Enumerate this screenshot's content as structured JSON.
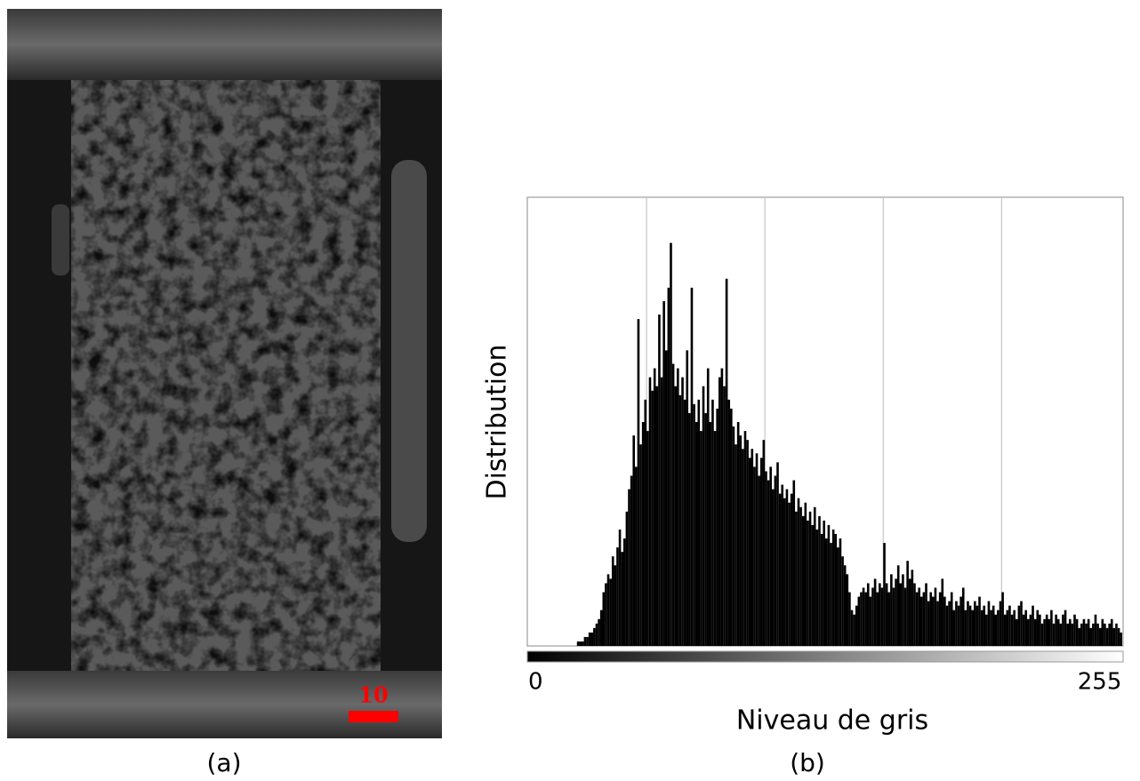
{
  "image": {
    "scale_bar_label": "10",
    "caption": "(a)"
  },
  "chart_data": {
    "type": "histogram",
    "caption": "(b)",
    "ylabel": "Distribution",
    "xlabel": "Niveau de gris",
    "color": "#000000",
    "bins": [
      0,
      1,
      2,
      3,
      4,
      5,
      6,
      7,
      8,
      9,
      10,
      11,
      12,
      13,
      14,
      15,
      16,
      17,
      18,
      19,
      20,
      21,
      22,
      23,
      24,
      25,
      26,
      27,
      28,
      29,
      30,
      31,
      32,
      33,
      34,
      35,
      36,
      37,
      38,
      39,
      40,
      41,
      42,
      43,
      44,
      45,
      46,
      47,
      48,
      49,
      50,
      51,
      52,
      53,
      54,
      55,
      56,
      57,
      58,
      59,
      60,
      61,
      62,
      63,
      64,
      65,
      66,
      67,
      68,
      69,
      70,
      71,
      72,
      73,
      74,
      75,
      76,
      77,
      78,
      79,
      80,
      81,
      82,
      83,
      84,
      85,
      86,
      87,
      88,
      89,
      90,
      91,
      92,
      93,
      94,
      95,
      96,
      97,
      98,
      99,
      100,
      101,
      102,
      103,
      104,
      105,
      106,
      107,
      108,
      109,
      110,
      111,
      112,
      113,
      114,
      115,
      116,
      117,
      118,
      119,
      120,
      121,
      122,
      123,
      124,
      125,
      126,
      127,
      128,
      129,
      130,
      131,
      132,
      133,
      134,
      135,
      136,
      137,
      138,
      139,
      140,
      141,
      142,
      143,
      144,
      145,
      146,
      147,
      148,
      149,
      150,
      151,
      152,
      153,
      154,
      155,
      156,
      157,
      158,
      159,
      160,
      161,
      162,
      163,
      164,
      165,
      166,
      167,
      168,
      169,
      170,
      171,
      172,
      173,
      174,
      175,
      176,
      177,
      178,
      179,
      180,
      181,
      182,
      183,
      184,
      185,
      186,
      187,
      188,
      189,
      190,
      191,
      192,
      193,
      194,
      195,
      196,
      197,
      198,
      199,
      200,
      201,
      202,
      203,
      204,
      205,
      206,
      207,
      208,
      209,
      210,
      211,
      212,
      213,
      214,
      215,
      216,
      217,
      218,
      219,
      220,
      221,
      222,
      223,
      224,
      225,
      226,
      227,
      228,
      229,
      230,
      231,
      232,
      233,
      234,
      235,
      236,
      237,
      238,
      239,
      240,
      241,
      242,
      243,
      244,
      245,
      246,
      247,
      248,
      249,
      250,
      251,
      252,
      253,
      254,
      255,
      256
    ],
    "values": [
      0,
      0,
      0,
      0,
      0,
      0,
      0,
      0,
      0,
      0,
      0,
      0,
      0,
      0,
      0,
      0,
      0,
      0,
      0,
      0,
      0,
      1,
      1,
      1,
      2,
      2,
      3,
      3,
      4,
      5,
      6,
      8,
      12,
      14,
      16,
      15,
      20,
      18,
      22,
      26,
      21,
      24,
      30,
      35,
      38,
      47,
      40,
      73,
      45,
      50,
      55,
      48,
      60,
      57,
      62,
      58,
      74,
      60,
      77,
      66,
      80,
      90,
      63,
      58,
      62,
      56,
      60,
      55,
      66,
      52,
      80,
      54,
      50,
      55,
      48,
      58,
      52,
      62,
      50,
      55,
      48,
      53,
      60,
      62,
      58,
      82,
      55,
      53,
      49,
      45,
      50,
      47,
      44,
      48,
      46,
      42,
      44,
      40,
      43,
      38,
      42,
      46,
      39,
      37,
      40,
      35,
      38,
      41,
      34,
      36,
      33,
      35,
      32,
      34,
      37,
      30,
      33,
      31,
      29,
      32,
      28,
      30,
      27,
      31,
      26,
      29,
      25,
      28,
      24,
      27,
      23,
      26,
      25,
      22,
      24,
      20,
      18,
      16,
      12,
      8,
      7,
      9,
      11,
      12,
      13,
      12,
      14,
      11,
      13,
      15,
      12,
      14,
      13,
      23,
      14,
      12,
      16,
      13,
      15,
      18,
      14,
      16,
      13,
      19,
      15,
      17,
      14,
      12,
      13,
      11,
      12,
      14,
      10,
      12,
      11,
      13,
      10,
      12,
      15,
      11,
      9,
      10,
      12,
      8,
      10,
      9,
      11,
      13,
      8,
      10,
      9,
      8,
      10,
      9,
      11,
      8,
      9,
      7,
      10,
      8,
      9,
      7,
      8,
      10,
      12,
      7,
      8,
      9,
      7,
      8,
      6,
      9,
      10,
      7,
      8,
      6,
      7,
      9,
      6,
      8,
      7,
      5,
      6,
      7,
      6,
      8,
      5,
      7,
      6,
      5,
      7,
      8,
      5,
      6,
      5,
      7,
      6,
      4,
      5,
      6,
      5,
      6,
      4,
      5,
      7,
      5,
      4,
      6,
      5,
      4,
      5,
      6,
      4,
      5,
      4,
      3
    ],
    "xlim": [
      0,
      256
    ],
    "ylim": [
      0,
      100
    ],
    "xticks": [
      0,
      255
    ],
    "xgrid": [
      51,
      102,
      153,
      204
    ],
    "grid": true
  }
}
